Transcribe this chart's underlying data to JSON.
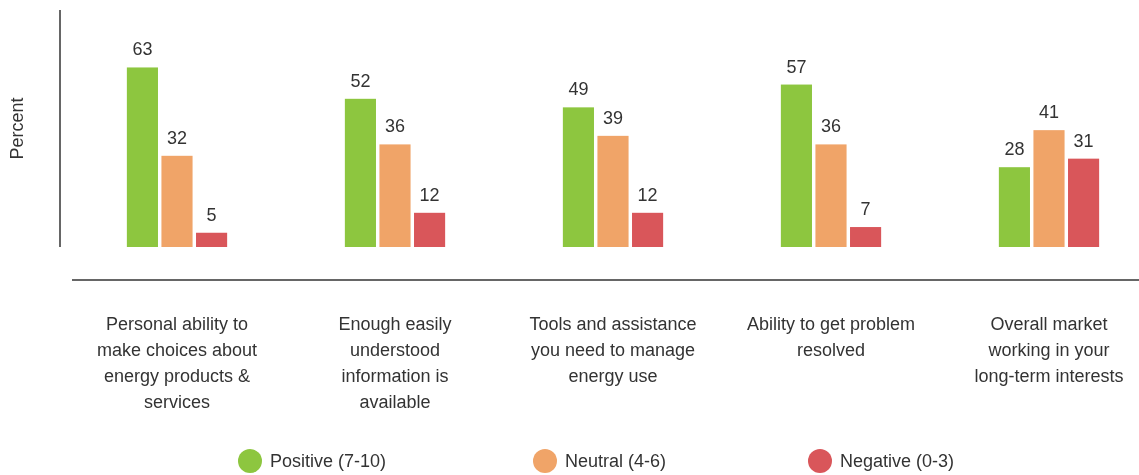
{
  "chart_data": {
    "type": "bar",
    "ylabel": "Percent",
    "categories": [
      "Personal ability to\nmake choices about\nenergy products &\nservices",
      "Enough easily\nunderstood\ninformation is\navailable",
      "Tools and assistance\nyou need to manage\nenergy use",
      "Ability to get problem\nresolved",
      "Overall market\nworking in your\nlong-term interests"
    ],
    "series": [
      {
        "name": "Positive (7-10)",
        "color": "#8dc63f",
        "values": [
          63,
          52,
          49,
          57,
          28
        ]
      },
      {
        "name": "Neutral (4-6)",
        "color": "#f0a468",
        "values": [
          32,
          36,
          39,
          36,
          41
        ]
      },
      {
        "name": "Negative (0-3)",
        "color": "#d9565a",
        "values": [
          5,
          12,
          12,
          7,
          31
        ]
      }
    ],
    "data_labels": true,
    "legend": "bottom"
  }
}
